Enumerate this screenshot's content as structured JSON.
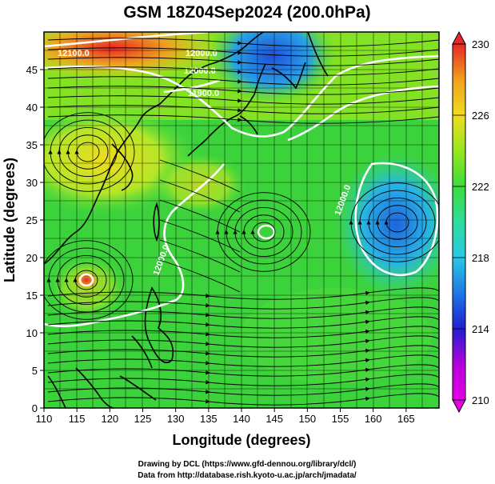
{
  "title": "GSM 18Z04Sep2024 (200.0hPa)",
  "xlabel": "Longitude (degrees)",
  "ylabel": "Latitude  (degrees)",
  "xticks": [
    "110",
    "115",
    "120",
    "125",
    "130",
    "135",
    "140",
    "145",
    "150",
    "155",
    "160",
    "165"
  ],
  "yticks": [
    "0",
    "5",
    "10",
    "15",
    "20",
    "25",
    "30",
    "35",
    "40",
    "45"
  ],
  "colorbar": {
    "ticks": [
      "230",
      "226",
      "222",
      "218",
      "214",
      "210"
    ],
    "min": 210,
    "max": 230,
    "colors": [
      "#e600e6",
      "#b400dc",
      "#2020d0",
      "#1e78e6",
      "#28c8e6",
      "#30dc9c",
      "#3cdc3c",
      "#96e61e",
      "#f0dc1e",
      "#f0a01e",
      "#e85a28",
      "#e62828"
    ]
  },
  "contour_labels": [
    "12100.0",
    "12000.0",
    "12000.0",
    "11900.0",
    "12000.0",
    "12000.0"
  ],
  "footer": {
    "line1": "Drawing by DCL (https://www.gfd-dennou.org/library/dcl/)",
    "line2": "Data from http://database.rish.kyoto-u.ac.jp/arch/jmadata/"
  },
  "chart_data": {
    "type": "heatmap",
    "title": "GSM 18Z04Sep2024 (200.0hPa)",
    "xlabel": "Longitude (degrees)",
    "ylabel": "Latitude  (degrees)",
    "xlim": [
      110,
      170
    ],
    "ylim": [
      0,
      50
    ],
    "colorbar_range": [
      210,
      230
    ],
    "grid": true,
    "features": [
      "color-filled temperature field",
      "white geopotential height contours",
      "streamlines with arrows",
      "coastlines"
    ]
  }
}
